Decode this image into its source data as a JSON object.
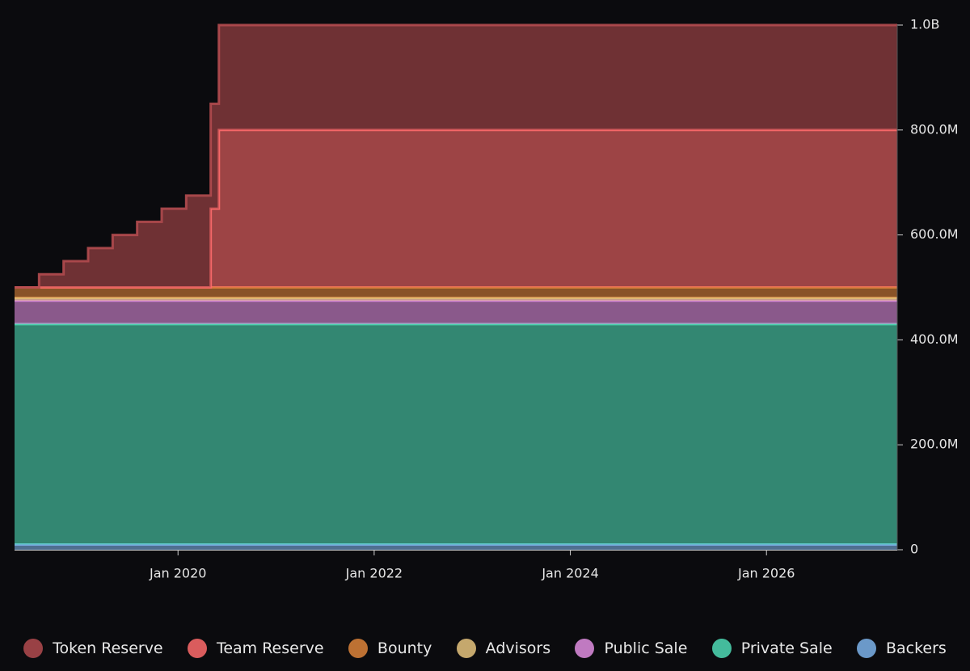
{
  "chart_data": {
    "type": "stacked-step-area",
    "x": [
      "2018-05",
      "2018-08",
      "2018-11",
      "2019-02",
      "2019-05",
      "2019-08",
      "2019-11",
      "2020-02",
      "2020-05",
      "2020-06",
      "2027-05"
    ],
    "xlim": [
      "2018-05",
      "2027-05"
    ],
    "xticks": [
      {
        "value": "2020-01",
        "label": "Jan 2020"
      },
      {
        "value": "2022-01",
        "label": "Jan 2022"
      },
      {
        "value": "2024-01",
        "label": "Jan 2024"
      },
      {
        "value": "2026-01",
        "label": "Jan 2026"
      }
    ],
    "ylim": [
      0,
      1000
    ],
    "yticks": [
      0,
      {
        "value": 200,
        "label": "200.0M"
      },
      {
        "value": 400,
        "label": "400.0M"
      },
      {
        "value": 600,
        "label": "600.0M"
      },
      {
        "value": 800,
        "label": "800.0M"
      },
      {
        "value": 1000,
        "label": "1.0B"
      }
    ],
    "series": [
      {
        "name": "Token Reserve",
        "color": "#b34b4f",
        "values": [
          0,
          25,
          50,
          75,
          100,
          125,
          150,
          175,
          200,
          200,
          200
        ]
      },
      {
        "name": "Team Reserve",
        "color": "#ff6b6b",
        "values": [
          0,
          0,
          0,
          0,
          0,
          0,
          0,
          0,
          150,
          300,
          300
        ]
      },
      {
        "name": "Bounty",
        "color": "#dd843a",
        "values": [
          20,
          20,
          20,
          20,
          20,
          20,
          20,
          20,
          20,
          20,
          20
        ]
      },
      {
        "name": "Advisors",
        "color": "#e6c47e",
        "values": [
          5,
          5,
          5,
          5,
          5,
          5,
          5,
          5,
          5,
          5,
          5
        ]
      },
      {
        "name": "Public Sale",
        "color": "#e08ee0",
        "values": [
          45,
          45,
          45,
          45,
          45,
          45,
          45,
          45,
          45,
          45,
          45
        ]
      },
      {
        "name": "Private Sale",
        "color": "#4fdbb5",
        "values": [
          420,
          420,
          420,
          420,
          420,
          420,
          420,
          420,
          420,
          420,
          420
        ]
      },
      {
        "name": "Backers",
        "color": "#7db3ea",
        "values": [
          10,
          10,
          10,
          10,
          10,
          10,
          10,
          10,
          10,
          10,
          10
        ]
      }
    ]
  }
}
